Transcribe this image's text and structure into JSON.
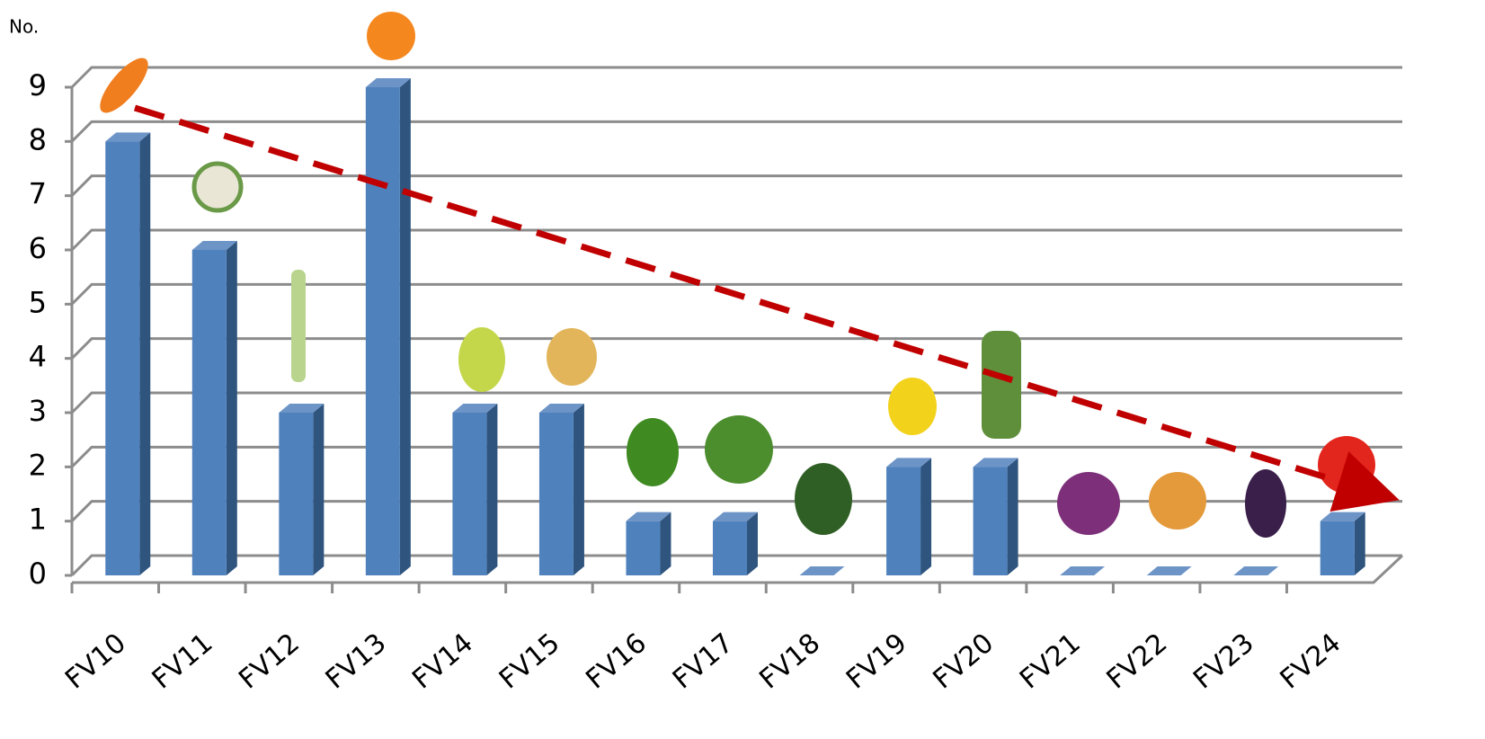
{
  "chart_data": {
    "type": "bar",
    "y_label": "No.",
    "categories": [
      "FV10",
      "FV11",
      "FV12",
      "FV13",
      "FV14",
      "FV15",
      "FV16",
      "FV17",
      "FV18",
      "FV19",
      "FV20",
      "FV21",
      "FV22",
      "FV23",
      "FV24"
    ],
    "values": [
      8,
      6,
      3,
      9,
      3,
      3,
      1,
      1,
      0,
      2,
      2,
      0,
      0,
      0,
      1
    ],
    "color": "#4f81bd",
    "ylim": [
      0,
      9
    ],
    "yticks": [
      0,
      1,
      2,
      3,
      4,
      5,
      6,
      7,
      8,
      9
    ],
    "grid": true
  }
}
